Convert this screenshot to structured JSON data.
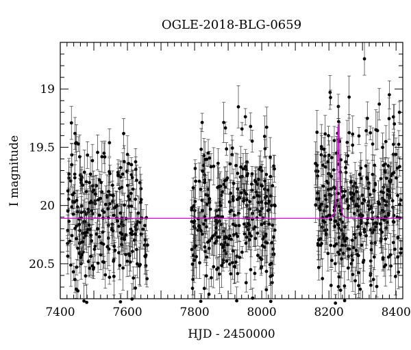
{
  "chart_data": {
    "type": "scatter",
    "title": "OGLE-2018-BLG-0659",
    "xlabel": "HJD - 2450000",
    "ylabel": "I magnitude",
    "xlim": [
      7400,
      8420
    ],
    "ylim": [
      20.8,
      18.6
    ],
    "y_inverted": true,
    "x_ticks": [
      7400,
      7600,
      7800,
      8000,
      8200,
      8400
    ],
    "x_tick_labels": [
      "7400",
      "7600",
      "7800",
      "8000",
      "8200",
      "8400"
    ],
    "y_ticks": [
      19,
      19.5,
      20,
      20.5
    ],
    "y_tick_labels": [
      "19",
      "19.5",
      "20",
      "20.5"
    ],
    "grid": false,
    "legend": "none",
    "colors": {
      "data": "#000000",
      "model": "#e000e0"
    },
    "model_curve": {
      "baseline_mag": 20.11,
      "t0": 8228,
      "peak_mag": 19.3,
      "tE": 5.5
    },
    "data_seasons": [
      {
        "hjd_start": 7420,
        "hjd_end": 7660,
        "mean_mag": 20.12,
        "scatter": 0.32,
        "n_points": 260
      },
      {
        "hjd_start": 7790,
        "hjd_end": 8040,
        "mean_mag": 20.08,
        "scatter": 0.32,
        "n_points": 300
      },
      {
        "hjd_start": 8160,
        "hjd_end": 8415,
        "mean_mag": 20.05,
        "scatter": 0.34,
        "n_points": 330
      }
    ],
    "highlight_points": [
      {
        "x": 8228,
        "y": 19.15
      },
      {
        "x": 8229,
        "y": 19.28
      },
      {
        "x": 8226,
        "y": 19.38
      },
      {
        "x": 8231,
        "y": 19.45
      },
      {
        "x": 8223,
        "y": 19.55
      },
      {
        "x": 8380,
        "y": 19.05
      },
      {
        "x": 8350,
        "y": 19.13
      },
      {
        "x": 8340,
        "y": 19.35
      },
      {
        "x": 8410,
        "y": 19.2
      },
      {
        "x": 8395,
        "y": 19.3
      }
    ]
  }
}
